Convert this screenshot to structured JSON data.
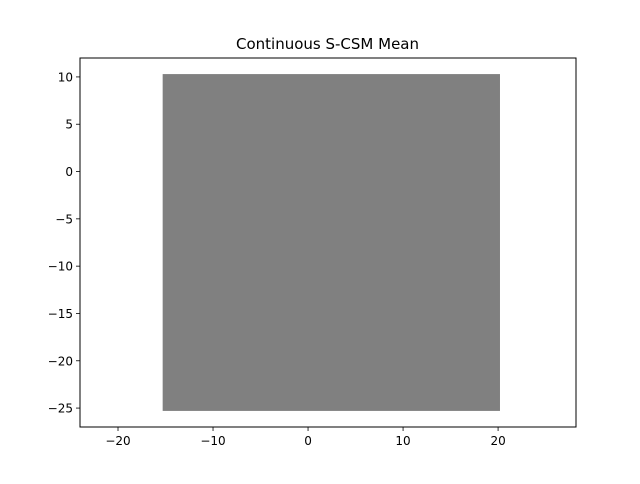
{
  "chart_data": {
    "type": "area",
    "title": "Continuous S-CSM Mean",
    "xlabel": "",
    "ylabel": "",
    "xlim": [
      -24,
      28.2
    ],
    "ylim": [
      -27,
      12
    ],
    "xticks": [
      -20,
      -10,
      0,
      10,
      20
    ],
    "yticks": [
      10,
      5,
      0,
      -5,
      -10,
      -15,
      -20,
      -25
    ],
    "xtick_labels": [
      "−20",
      "−10",
      "0",
      "10",
      "20"
    ],
    "ytick_labels": [
      "10",
      "5",
      "0",
      "−5",
      "−10",
      "−15",
      "−20",
      "−25"
    ],
    "regions": [
      {
        "x": [
          -15.3,
          20.2
        ],
        "y": [
          -25.3,
          10.3
        ],
        "color": "#808080"
      }
    ],
    "grid": false,
    "legend": "none"
  }
}
